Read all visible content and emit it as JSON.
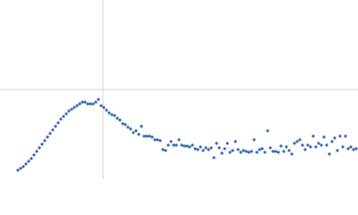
{
  "chart_data": {
    "type": "scatter",
    "color": "#3b6cb4",
    "xlim": [
      0,
      400
    ],
    "ylim": [
      0,
      200
    ],
    "vlines": [
      115
    ],
    "hlines": [
      100
    ],
    "line_color": "#d4d4d4",
    "x": [
      20,
      23,
      26,
      29,
      32,
      35,
      38,
      41,
      44,
      47,
      50,
      53,
      56,
      59,
      62,
      65,
      68,
      71,
      74,
      77,
      80,
      83,
      86,
      89,
      92,
      95,
      98,
      101,
      104,
      107,
      110,
      113,
      116,
      119,
      122,
      125,
      128,
      131,
      134,
      137,
      140,
      143,
      146,
      149,
      152,
      155,
      158,
      161,
      164,
      167,
      170,
      173,
      176,
      179,
      182,
      185,
      188,
      191,
      194,
      197,
      200,
      203,
      206,
      209,
      212,
      215,
      218,
      221,
      224,
      227,
      230,
      233,
      236,
      239,
      242,
      245,
      248,
      251,
      254,
      257,
      260,
      263,
      266,
      269,
      272,
      275,
      278,
      281,
      284,
      287,
      290,
      293,
      296,
      299,
      302,
      305,
      308,
      311,
      314,
      317,
      320,
      323,
      326,
      329,
      332,
      335,
      338,
      341,
      344,
      347,
      350,
      353,
      356,
      359,
      362,
      365,
      368,
      371,
      374,
      377,
      380,
      383,
      386,
      389,
      392,
      395,
      398
    ],
    "y": [
      10,
      12,
      14,
      17,
      20,
      23,
      27,
      31,
      35,
      39,
      43,
      47,
      51,
      55,
      59,
      63,
      67,
      70,
      73,
      76,
      78,
      80,
      82,
      84,
      86,
      86,
      84,
      84,
      84,
      86,
      89,
      82,
      80,
      77,
      74,
      72,
      71,
      68,
      66,
      62,
      61,
      58,
      56,
      52,
      54,
      50,
      59,
      48,
      48,
      48,
      47,
      44,
      44,
      43,
      33,
      32,
      38,
      42,
      38,
      38,
      44,
      38,
      37,
      37,
      36,
      38,
      34,
      33,
      36,
      32,
      35,
      33,
      35,
      24,
      40,
      35,
      29,
      34,
      40,
      30,
      32,
      42,
      33,
      30,
      32,
      31,
      30,
      31,
      44,
      30,
      33,
      34,
      30,
      54,
      35,
      31,
      31,
      30,
      37,
      31,
      36,
      32,
      28,
      40,
      42,
      44,
      38,
      33,
      38,
      36,
      48,
      36,
      40,
      38,
      47,
      38,
      28,
      42,
      46,
      32,
      48,
      36,
      48,
      34,
      36,
      33,
      34
    ]
  }
}
